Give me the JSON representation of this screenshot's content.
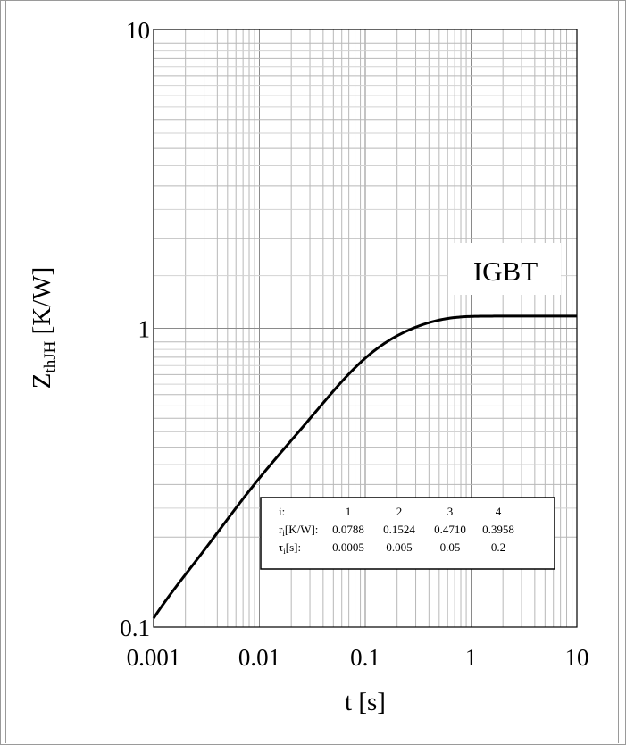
{
  "chart_data": {
    "type": "line",
    "xlabel": "t [s]",
    "ylabel": {
      "base": "Z",
      "sub": "thJH",
      "rest": " [K/W]"
    },
    "x_scale": "log",
    "y_scale": "log",
    "xlim": [
      0.001,
      10
    ],
    "ylim": [
      0.1,
      10
    ],
    "x_ticks": [
      "0.001",
      "0.01",
      "0.1",
      "1",
      "10"
    ],
    "y_ticks": [
      "0.1",
      "1",
      "10"
    ],
    "grid": true,
    "series": [
      {
        "name": "IGBT",
        "model": "foster",
        "r": [
          0.0788,
          0.1524,
          0.471,
          0.3958
        ],
        "tau": [
          0.0005,
          0.005,
          0.05,
          0.2
        ]
      }
    ],
    "table": {
      "rows": [
        {
          "label": {
            "base": "i:",
            "sub": "",
            "rest": ""
          },
          "values": [
            "1",
            "2",
            "3",
            "4"
          ]
        },
        {
          "label": {
            "base": "r",
            "sub": "i",
            "rest": "[K/W]:"
          },
          "values": [
            "0.0788",
            "0.1524",
            "0.4710",
            "0.3958"
          ]
        },
        {
          "label": {
            "base": "τ",
            "sub": "i",
            "rest": "[s]:"
          },
          "values": [
            "0.0005",
            "0.005",
            "0.05",
            "0.2"
          ]
        }
      ]
    },
    "colors": {
      "line": "#000000",
      "grid": "#b8b8b8",
      "axis": "#000000"
    }
  }
}
